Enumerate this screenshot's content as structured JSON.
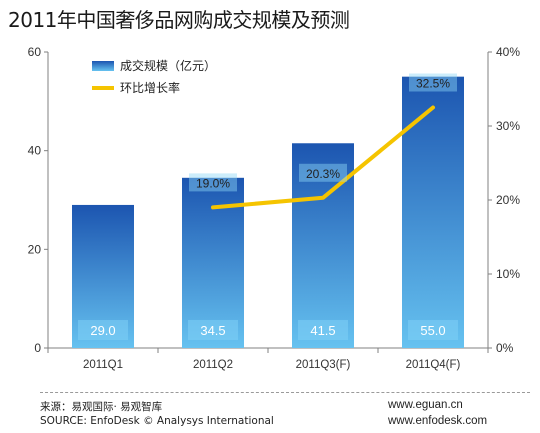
{
  "chart_data": {
    "type": "bar",
    "title": "2011年中国奢侈品网购成交规模及预测",
    "categories": [
      "2011Q1",
      "2011Q2",
      "2011Q3(F)",
      "2011Q4(F)"
    ],
    "series": [
      {
        "name": "成交规模（亿元）",
        "type": "bar",
        "axis": "left",
        "values": [
          29.0,
          34.5,
          41.5,
          55.0
        ],
        "labels": [
          "29.0",
          "34.5",
          "41.5",
          "55.0"
        ]
      },
      {
        "name": "环比增长率",
        "type": "line",
        "axis": "right",
        "values": [
          null,
          19.0,
          20.3,
          32.5
        ],
        "labels": [
          "",
          "19.0%",
          "20.3%",
          "32.5%"
        ]
      }
    ],
    "ylim": [
      0,
      60
    ],
    "y_ticks": [
      "0",
      "20",
      "40",
      "60"
    ],
    "y2lim": [
      0,
      40
    ],
    "y2_ticks": [
      "0%",
      "10%",
      "20%",
      "30%",
      "40%"
    ],
    "legend_position": "top-left",
    "colors": {
      "bar_top": "#1c55b0",
      "bar_bottom": "#66c2f0",
      "line": "#f5c400"
    }
  },
  "footer": {
    "source_cn": "来源：易观国际· 易观智库",
    "source_en": "SOURCE: EnfoDesk © Analysys International",
    "url1": "www.eguan.cn",
    "url2": "www.enfodesk.com"
  }
}
